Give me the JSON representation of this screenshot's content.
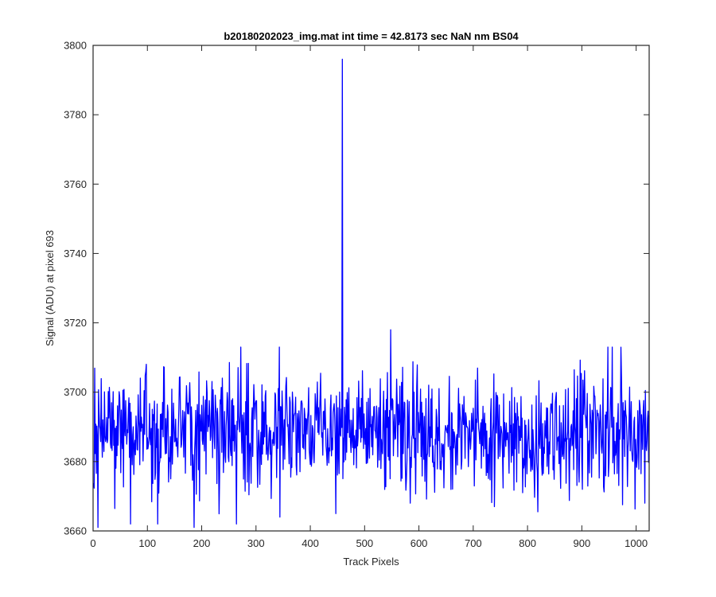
{
  "chart_data": {
    "type": "line",
    "title": "b20180202023_img.mat int time = 42.8173 sec  NaN nm BS04",
    "xlabel": "Track Pixels",
    "ylabel": "Signal (ADU) at pixel 693",
    "xlim": [
      0,
      1024
    ],
    "ylim": [
      3660,
      3800
    ],
    "xticks": [
      0,
      100,
      200,
      300,
      400,
      500,
      600,
      700,
      800,
      900,
      1000
    ],
    "yticks": [
      3660,
      3680,
      3700,
      3720,
      3740,
      3760,
      3780,
      3800
    ],
    "xtick_labels": [
      "0",
      "100",
      "200",
      "300",
      "400",
      "500",
      "600",
      "700",
      "800",
      "900",
      "1000"
    ],
    "ytick_labels": [
      "3660",
      "3680",
      "3700",
      "3720",
      "3740",
      "3760",
      "3780",
      "3800"
    ],
    "grid": false,
    "box": true,
    "series": [
      {
        "color": "#0000ff",
        "n_points": 1024,
        "baseline_mean": 3689,
        "noise_min": 3661,
        "noise_max": 3718,
        "peaks": [
          {
            "x": 458,
            "y": 3796
          }
        ],
        "notable_points": [
          {
            "x": 8,
            "y": 3661
          },
          {
            "x": 68,
            "y": 3662
          },
          {
            "x": 118,
            "y": 3662
          },
          {
            "x": 185,
            "y": 3661
          },
          {
            "x": 263,
            "y": 3662
          },
          {
            "x": 343,
            "y": 3664
          },
          {
            "x": 446,
            "y": 3665
          },
          {
            "x": 547,
            "y": 3718
          },
          {
            "x": 583,
            "y": 3668
          },
          {
            "x": 738,
            "y": 3667
          },
          {
            "x": 955,
            "y": 3713
          },
          {
            "x": 1015,
            "y": 3668
          }
        ]
      }
    ]
  }
}
